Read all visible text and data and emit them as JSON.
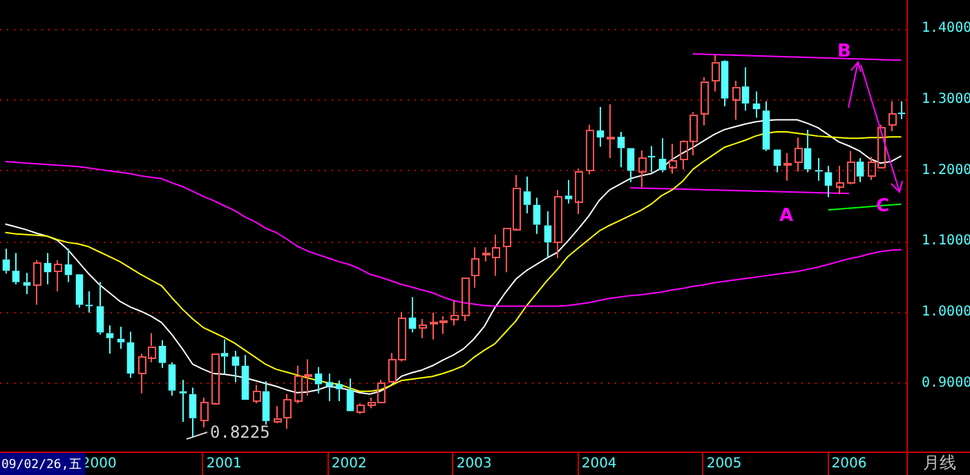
{
  "chart_data": {
    "type": "candlestick",
    "categories": [
      null,
      null,
      null,
      null,
      null,
      null,
      null,
      null,
      null,
      "2000",
      null,
      null,
      null,
      null,
      null,
      null,
      null,
      null,
      null,
      null,
      null,
      "2001",
      null,
      null,
      null,
      null,
      null,
      null,
      null,
      null,
      null,
      null,
      null,
      "2002",
      null,
      null,
      null,
      null,
      null,
      null,
      null,
      null,
      null,
      null,
      null,
      "2003",
      null,
      null,
      null,
      null,
      null,
      null,
      null,
      null,
      null,
      null,
      null,
      "2004",
      null,
      null,
      null,
      null,
      null,
      null,
      null,
      null,
      null,
      null,
      null,
      "2005",
      null,
      null,
      null,
      null,
      null,
      null,
      null,
      null,
      null,
      null,
      null,
      "2006",
      null,
      null,
      null,
      null,
      null
    ],
    "ohlc": [
      [
        1.074,
        1.089,
        1.054,
        1.058
      ],
      [
        1.058,
        1.083,
        1.039,
        1.042
      ],
      [
        1.042,
        1.055,
        1.025,
        1.037
      ],
      [
        1.037,
        1.073,
        1.01,
        1.069
      ],
      [
        1.069,
        1.083,
        1.039,
        1.056
      ],
      [
        1.057,
        1.073,
        1.029,
        1.067
      ],
      [
        1.067,
        1.089,
        1.042,
        1.052
      ],
      [
        1.053,
        1.053,
        1.006,
        1.01
      ],
      [
        1.01,
        1.029,
        0.999,
        1.009
      ],
      [
        1.008,
        1.042,
        0.968,
        0.971
      ],
      [
        0.97,
        0.981,
        0.941,
        0.963
      ],
      [
        0.962,
        0.979,
        0.948,
        0.957
      ],
      [
        0.957,
        0.972,
        0.907,
        0.913
      ],
      [
        0.913,
        0.941,
        0.885,
        0.937
      ],
      [
        0.937,
        0.97,
        0.929,
        0.952
      ],
      [
        0.952,
        0.96,
        0.921,
        0.928
      ],
      [
        0.926,
        0.929,
        0.882,
        0.889
      ],
      [
        0.888,
        0.904,
        0.845,
        0.885
      ],
      [
        0.884,
        0.893,
        0.8225,
        0.85
      ],
      [
        0.847,
        0.879,
        0.837,
        0.873
      ],
      [
        0.872,
        0.942,
        0.871,
        0.942
      ],
      [
        0.942,
        0.961,
        0.913,
        0.937
      ],
      [
        0.937,
        0.945,
        0.901,
        0.924
      ],
      [
        0.924,
        0.939,
        0.876,
        0.876
      ],
      [
        0.874,
        0.897,
        0.871,
        0.888
      ],
      [
        0.888,
        0.902,
        0.841,
        0.846
      ],
      [
        0.846,
        0.867,
        0.843,
        0.85
      ],
      [
        0.851,
        0.884,
        0.835,
        0.877
      ],
      [
        0.876,
        0.924,
        0.871,
        0.911
      ],
      [
        0.91,
        0.933,
        0.882,
        0.912
      ],
      [
        0.913,
        0.922,
        0.885,
        0.898
      ],
      [
        0.901,
        0.913,
        0.874,
        0.895
      ],
      [
        0.898,
        0.903,
        0.874,
        0.891
      ],
      [
        0.89,
        0.906,
        0.86,
        0.86
      ],
      [
        0.86,
        0.871,
        0.856,
        0.869
      ],
      [
        0.871,
        0.879,
        0.864,
        0.874
      ],
      [
        0.873,
        0.904,
        0.871,
        0.9
      ],
      [
        0.902,
        0.942,
        0.9,
        0.933
      ],
      [
        0.934,
        1.0,
        0.93,
        0.992
      ],
      [
        0.992,
        1.021,
        0.971,
        0.976
      ],
      [
        0.978,
        0.99,
        0.963,
        0.982
      ],
      [
        0.984,
        0.999,
        0.961,
        0.986
      ],
      [
        0.987,
        0.994,
        0.969,
        0.989
      ],
      [
        0.991,
        1.016,
        0.981,
        0.996
      ],
      [
        0.996,
        1.049,
        0.987,
        1.049
      ],
      [
        1.052,
        1.091,
        1.034,
        1.076
      ],
      [
        1.081,
        1.091,
        1.071,
        1.083
      ],
      [
        1.078,
        1.109,
        1.051,
        1.091
      ],
      [
        1.092,
        1.118,
        1.056,
        1.118
      ],
      [
        1.118,
        1.193,
        1.115,
        1.176
      ],
      [
        1.17,
        1.191,
        1.139,
        1.151
      ],
      [
        1.151,
        1.161,
        1.11,
        1.123
      ],
      [
        1.122,
        1.142,
        1.076,
        1.098
      ],
      [
        1.099,
        1.172,
        1.076,
        1.164
      ],
      [
        1.164,
        1.186,
        1.153,
        1.159
      ],
      [
        1.157,
        1.202,
        1.138,
        1.199
      ],
      [
        1.199,
        1.264,
        1.194,
        1.256
      ],
      [
        1.256,
        1.289,
        1.233,
        1.246
      ],
      [
        1.246,
        1.293,
        1.217,
        1.247
      ],
      [
        1.247,
        1.254,
        1.204,
        1.231
      ],
      [
        1.231,
        1.231,
        1.183,
        1.199
      ],
      [
        1.199,
        1.228,
        1.176,
        1.218
      ],
      [
        1.22,
        1.234,
        1.197,
        1.218
      ],
      [
        1.216,
        1.245,
        1.197,
        1.2
      ],
      [
        1.206,
        1.237,
        1.195,
        1.215
      ],
      [
        1.216,
        1.242,
        1.201,
        1.241
      ],
      [
        1.242,
        1.282,
        1.221,
        1.279
      ],
      [
        1.281,
        1.331,
        1.263,
        1.326
      ],
      [
        1.327,
        1.362,
        1.311,
        1.353
      ],
      [
        1.354,
        1.355,
        1.29,
        1.301
      ],
      [
        1.301,
        1.326,
        1.271,
        1.318
      ],
      [
        1.318,
        1.345,
        1.284,
        1.294
      ],
      [
        1.294,
        1.311,
        1.274,
        1.286
      ],
      [
        1.284,
        1.297,
        1.227,
        1.229
      ],
      [
        1.229,
        1.229,
        1.197,
        1.206
      ],
      [
        1.209,
        1.224,
        1.185,
        1.21
      ],
      [
        1.211,
        1.246,
        1.198,
        1.231
      ],
      [
        1.231,
        1.257,
        1.197,
        1.201
      ],
      [
        1.2,
        1.217,
        1.185,
        1.198
      ],
      [
        1.197,
        1.206,
        1.162,
        1.178
      ],
      [
        1.178,
        1.206,
        1.166,
        1.183
      ],
      [
        1.183,
        1.227,
        1.18,
        1.212
      ],
      [
        1.212,
        1.217,
        1.183,
        1.191
      ],
      [
        1.192,
        1.219,
        1.186,
        1.212
      ],
      [
        1.204,
        1.264,
        1.203,
        1.261
      ],
      [
        1.264,
        1.297,
        1.255,
        1.28
      ],
      [
        1.281,
        1.297,
        1.272,
        1.279
      ]
    ],
    "colors": [
      "#54ffff",
      "#54ffff",
      "#54ffff",
      "#ff5454",
      "#54ffff",
      "#ff5454",
      "#54ffff",
      "#54ffff",
      "#54ffff",
      "#54ffff",
      "#54ffff",
      "#54ffff",
      "#54ffff",
      "#ff5454",
      "#ff5454",
      "#54ffff",
      "#54ffff",
      "#54ffff",
      "#54ffff",
      "#ff5454",
      "#ff5454",
      "#54ffff",
      "#54ffff",
      "#54ffff",
      "#ff5454",
      "#54ffff",
      "#ff5454",
      "#ff5454",
      "#ff5454",
      "#ff5454",
      "#54ffff",
      "#54ffff",
      "#54ffff",
      "#54ffff",
      "#ff5454",
      "#ff5454",
      "#ff5454",
      "#ff5454",
      "#ff5454",
      "#54ffff",
      "#ff5454",
      "#ff5454",
      "#ff5454",
      "#ff5454",
      "#ff5454",
      "#ff5454",
      "#ff5454",
      "#ff5454",
      "#ff5454",
      "#ff5454",
      "#54ffff",
      "#54ffff",
      "#54ffff",
      "#ff5454",
      "#54ffff",
      "#ff5454",
      "#ff5454",
      "#54ffff",
      "#ff5454",
      "#54ffff",
      "#54ffff",
      "#ff5454",
      "#54ffff",
      "#54ffff",
      "#ff5454",
      "#ff5454",
      "#ff5454",
      "#ff5454",
      "#ff5454",
      "#54ffff",
      "#ff5454",
      "#54ffff",
      "#54ffff",
      "#54ffff",
      "#54ffff",
      "#ff5454",
      "#ff5454",
      "#54ffff",
      "#54ffff",
      "#54ffff",
      "#ff5454",
      "#ff5454",
      "#54ffff",
      "#ff5454",
      "#ff5454",
      "#ff5454",
      "#54ffff"
    ],
    "series": [
      {
        "type": "line",
        "color": "#ff00ff",
        "values": [
          1.212,
          1.211,
          1.21,
          1.209,
          1.208,
          1.207,
          1.206,
          1.205,
          1.203,
          1.201,
          1.199,
          1.197,
          1.195,
          1.192,
          1.19,
          1.188,
          1.182,
          1.177,
          1.17,
          1.163,
          1.157,
          1.15,
          1.143,
          1.134,
          1.127,
          1.118,
          1.112,
          1.103,
          1.093,
          1.086,
          1.081,
          1.076,
          1.071,
          1.067,
          1.061,
          1.053,
          1.049,
          1.044,
          1.039,
          1.035,
          1.031,
          1.027,
          1.021,
          1.016,
          1.013,
          1.011,
          1.009,
          1.008,
          1.008,
          1.008,
          1.008,
          1.008,
          1.008,
          1.008,
          1.009,
          1.011,
          1.013,
          1.016,
          1.019,
          1.021,
          1.023,
          1.024,
          1.026,
          1.028,
          1.031,
          1.033,
          1.036,
          1.038,
          1.041,
          1.043,
          1.045,
          1.047,
          1.049,
          1.051,
          1.053,
          1.055,
          1.057,
          1.06,
          1.063,
          1.067,
          1.071,
          1.075,
          1.078,
          1.082,
          1.085,
          1.087,
          1.088
        ]
      },
      {
        "type": "line",
        "color": "#ffff00",
        "values": [
          1.112,
          1.11,
          1.109,
          1.108,
          1.107,
          1.102,
          1.098,
          1.096,
          1.092,
          1.085,
          1.078,
          1.071,
          1.062,
          1.053,
          1.045,
          1.037,
          1.02,
          1.004,
          0.99,
          0.978,
          0.971,
          0.964,
          0.956,
          0.946,
          0.936,
          0.926,
          0.919,
          0.915,
          0.911,
          0.907,
          0.903,
          0.9,
          0.898,
          0.893,
          0.888,
          0.888,
          0.89,
          0.896,
          0.903,
          0.905,
          0.907,
          0.909,
          0.913,
          0.918,
          0.924,
          0.936,
          0.946,
          0.955,
          0.971,
          0.987,
          1.008,
          1.026,
          1.044,
          1.06,
          1.078,
          1.09,
          1.102,
          1.114,
          1.122,
          1.129,
          1.136,
          1.143,
          1.152,
          1.164,
          1.172,
          1.184,
          1.201,
          1.212,
          1.222,
          1.232,
          1.237,
          1.242,
          1.248,
          1.252,
          1.254,
          1.254,
          1.252,
          1.25,
          1.248,
          1.247,
          1.246,
          1.245,
          1.245,
          1.246,
          1.246,
          1.247,
          1.247
        ]
      },
      {
        "type": "line",
        "color": "#ffffff",
        "values": [
          1.124,
          1.12,
          1.116,
          1.111,
          1.107,
          1.101,
          1.088,
          1.071,
          1.054,
          1.039,
          1.027,
          1.015,
          1.007,
          1.001,
          0.994,
          0.985,
          0.968,
          0.948,
          0.926,
          0.919,
          0.913,
          0.912,
          0.91,
          0.907,
          0.903,
          0.899,
          0.895,
          0.89,
          0.886,
          0.887,
          0.89,
          0.895,
          0.893,
          0.89,
          0.886,
          0.884,
          0.888,
          0.896,
          0.909,
          0.914,
          0.918,
          0.924,
          0.932,
          0.939,
          0.948,
          0.962,
          0.98,
          1.006,
          1.027,
          1.046,
          1.058,
          1.067,
          1.076,
          1.084,
          1.1,
          1.117,
          1.135,
          1.157,
          1.172,
          1.18,
          1.188,
          1.192,
          1.195,
          1.203,
          1.215,
          1.224,
          1.232,
          1.241,
          1.25,
          1.257,
          1.261,
          1.265,
          1.268,
          1.27,
          1.271,
          1.271,
          1.271,
          1.266,
          1.26,
          1.25,
          1.24,
          1.234,
          1.227,
          1.216,
          1.21,
          1.212,
          1.22
        ]
      },
      {
        "type": "line",
        "color": "#ff00ff",
        "values": [
          null,
          null,
          null,
          null,
          null,
          null,
          null,
          null,
          null,
          null,
          null,
          null,
          null,
          null,
          null,
          null,
          null,
          null,
          null,
          null,
          null,
          null,
          null,
          null,
          null,
          null,
          null,
          null,
          null,
          null,
          null,
          null,
          null,
          null,
          null,
          null,
          null,
          null,
          null,
          null,
          null,
          null,
          null,
          null,
          null,
          null,
          null,
          null,
          null,
          null,
          null,
          null,
          null,
          null,
          null,
          null,
          null,
          null,
          null,
          null,
          null,
          null,
          null,
          null,
          null,
          null,
          1.364,
          null,
          null,
          null,
          null,
          null,
          null,
          null,
          null,
          null,
          null,
          null,
          null,
          null,
          null,
          null,
          null,
          null,
          null,
          null,
          1.355
        ]
      },
      {
        "type": "line",
        "color": "#ff00ff",
        "values": [
          null,
          null,
          null,
          null,
          null,
          null,
          null,
          null,
          null,
          null,
          null,
          null,
          null,
          null,
          null,
          null,
          null,
          null,
          null,
          null,
          null,
          null,
          null,
          null,
          null,
          null,
          null,
          null,
          null,
          null,
          null,
          null,
          null,
          null,
          null,
          null,
          null,
          null,
          null,
          null,
          null,
          null,
          null,
          null,
          null,
          null,
          null,
          null,
          null,
          null,
          null,
          null,
          null,
          null,
          null,
          null,
          null,
          null,
          null,
          null,
          1.175,
          null,
          null,
          null,
          null,
          null,
          null,
          null,
          null,
          null,
          null,
          null,
          null,
          null,
          null,
          null,
          null,
          null,
          null,
          null,
          null,
          1.167,
          null,
          null,
          null,
          null,
          null
        ]
      },
      {
        "type": "line",
        "color": "#00ff00",
        "values": [
          null,
          null,
          null,
          null,
          null,
          null,
          null,
          null,
          null,
          null,
          null,
          null,
          null,
          null,
          null,
          null,
          null,
          null,
          null,
          null,
          null,
          null,
          null,
          null,
          null,
          null,
          null,
          null,
          null,
          null,
          null,
          null,
          null,
          null,
          null,
          null,
          null,
          null,
          null,
          null,
          null,
          null,
          null,
          null,
          null,
          null,
          null,
          null,
          null,
          null,
          null,
          null,
          null,
          null,
          null,
          null,
          null,
          null,
          null,
          null,
          null,
          null,
          null,
          null,
          null,
          null,
          null,
          null,
          null,
          null,
          null,
          null,
          null,
          null,
          null,
          null,
          null,
          null,
          null,
          1.144,
          null,
          null,
          null,
          null,
          null,
          null,
          1.152
        ]
      }
    ],
    "ylim": [
      0.803,
      1.44
    ],
    "yticks": [
      {
        "value": 0.9,
        "label": "0.9000"
      },
      {
        "value": 1.0,
        "label": "1.0000"
      },
      {
        "value": 1.1,
        "label": "1.1000"
      },
      {
        "value": 1.2,
        "label": "1.2000"
      },
      {
        "value": 1.3,
        "label": "1.3000"
      },
      {
        "value": 1.4,
        "label": "1.4000"
      }
    ],
    "grid": "y",
    "annotations": [
      "0.8225",
      "A",
      "B",
      {
        "text": "C",
        "y": 1.152
      },
      "09/02/26,五",
      "月线"
    ]
  }
}
